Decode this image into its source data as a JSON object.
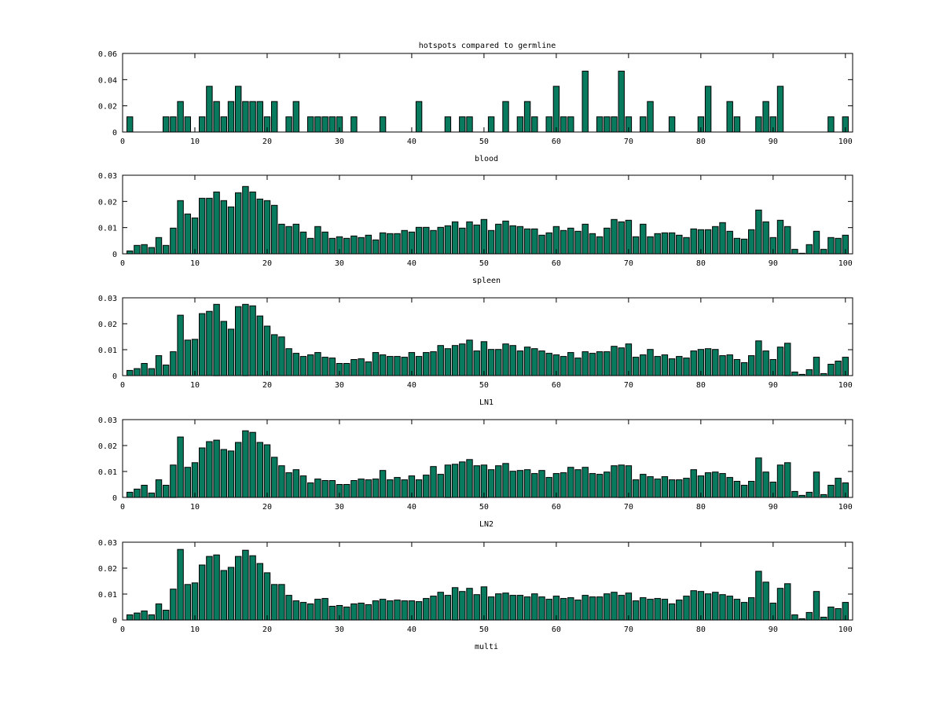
{
  "figure_title": "hotspots compared to germline",
  "colors": {
    "bar": "#087a5e",
    "bar_edge": "#000000"
  },
  "chart_data": [
    {
      "type": "bar",
      "title": "hotspots compared to germline",
      "xlabel": "blood",
      "xlim": [
        0,
        101
      ],
      "ylim": [
        0,
        0.06
      ],
      "xticks": [
        "0",
        "10",
        "20",
        "30",
        "40",
        "50",
        "60",
        "70",
        "80",
        "90",
        "100"
      ],
      "yticks": [
        "0",
        "0.02",
        "0.04",
        "0.06"
      ],
      "x_start": 1,
      "values": [
        0.0116,
        0,
        0,
        0,
        0,
        0.0116,
        0.0116,
        0.0233,
        0.0116,
        0,
        0.0116,
        0.0349,
        0.0233,
        0.0116,
        0.0233,
        0.0349,
        0.0233,
        0.0233,
        0.0233,
        0.0116,
        0.0233,
        0,
        0.0116,
        0.0233,
        0,
        0.0116,
        0.0116,
        0.0116,
        0.0116,
        0.0116,
        0,
        0.0116,
        0,
        0,
        0,
        0.0116,
        0,
        0,
        0,
        0,
        0.0233,
        0,
        0,
        0,
        0.0116,
        0,
        0.0116,
        0.0116,
        0,
        0,
        0.0116,
        0,
        0.0233,
        0,
        0.0116,
        0.0233,
        0.0116,
        0,
        0.0116,
        0.0349,
        0.0116,
        0.0116,
        0,
        0.0465,
        0,
        0.0116,
        0.0116,
        0.0116,
        0.0465,
        0.0116,
        0,
        0.0116,
        0.0233,
        0,
        0,
        0.0116,
        0,
        0,
        0,
        0.0116,
        0.0349,
        0,
        0,
        0.0233,
        0.0116,
        0,
        0,
        0.0116,
        0.0233,
        0.0116,
        0.0349,
        0,
        0,
        0,
        0,
        0,
        0,
        0.0116,
        0,
        0.0116
      ]
    },
    {
      "type": "bar",
      "xlabel": "spleen",
      "xlim": [
        0,
        101
      ],
      "ylim": [
        0,
        0.03
      ],
      "xticks": [
        "0",
        "10",
        "20",
        "30",
        "40",
        "50",
        "60",
        "70",
        "80",
        "90",
        "100"
      ],
      "yticks": [
        "0",
        "0.01",
        "0.02",
        "0.03"
      ],
      "x_start": 1,
      "values": [
        0.0011,
        0.0032,
        0.0035,
        0.0024,
        0.0062,
        0.0032,
        0.0098,
        0.0203,
        0.0152,
        0.0137,
        0.0212,
        0.0212,
        0.0236,
        0.0203,
        0.0179,
        0.0233,
        0.0257,
        0.0236,
        0.0209,
        0.0203,
        0.0185,
        0.0113,
        0.0104,
        0.0113,
        0.0083,
        0.0059,
        0.0104,
        0.0083,
        0.0059,
        0.0065,
        0.0059,
        0.0068,
        0.0062,
        0.0071,
        0.0053,
        0.008,
        0.0077,
        0.0077,
        0.0089,
        0.0083,
        0.0101,
        0.0101,
        0.0089,
        0.0101,
        0.0107,
        0.0122,
        0.0098,
        0.0122,
        0.011,
        0.0131,
        0.0089,
        0.0113,
        0.0125,
        0.0107,
        0.0104,
        0.0095,
        0.0095,
        0.0071,
        0.008,
        0.0104,
        0.0089,
        0.0098,
        0.0086,
        0.0113,
        0.0077,
        0.0065,
        0.0098,
        0.0131,
        0.0122,
        0.0128,
        0.0065,
        0.0113,
        0.0065,
        0.0077,
        0.008,
        0.008,
        0.0071,
        0.0062,
        0.0095,
        0.0092,
        0.0092,
        0.0104,
        0.0119,
        0.0086,
        0.0059,
        0.0056,
        0.0092,
        0.0167,
        0.0122,
        0.0062,
        0.0128,
        0.0104,
        0.0017,
        0.0002,
        0.0035,
        0.0086,
        0.0017,
        0.0062,
        0.0059,
        0.0071
      ]
    },
    {
      "type": "bar",
      "xlabel": "LN1",
      "xlim": [
        0,
        101
      ],
      "ylim": [
        0,
        0.03
      ],
      "xticks": [
        "0",
        "10",
        "20",
        "30",
        "40",
        "50",
        "60",
        "70",
        "80",
        "90",
        "100"
      ],
      "yticks": [
        "0",
        "0.01",
        "0.02",
        "0.03"
      ],
      "x_start": 1,
      "values": [
        0.002,
        0.0027,
        0.0047,
        0.0027,
        0.0077,
        0.0041,
        0.0092,
        0.0233,
        0.0137,
        0.014,
        0.0239,
        0.0248,
        0.0275,
        0.0209,
        0.0179,
        0.0266,
        0.0275,
        0.0269,
        0.023,
        0.0191,
        0.0158,
        0.0149,
        0.0104,
        0.0086,
        0.0074,
        0.008,
        0.0089,
        0.0071,
        0.0068,
        0.0047,
        0.0047,
        0.0062,
        0.0065,
        0.0053,
        0.0089,
        0.008,
        0.0074,
        0.0074,
        0.0071,
        0.0089,
        0.0074,
        0.0089,
        0.0092,
        0.0116,
        0.0104,
        0.0116,
        0.0122,
        0.0137,
        0.0095,
        0.0131,
        0.0101,
        0.0101,
        0.0122,
        0.0116,
        0.0095,
        0.011,
        0.0104,
        0.0095,
        0.0086,
        0.008,
        0.0074,
        0.0089,
        0.0068,
        0.0092,
        0.0086,
        0.0092,
        0.0092,
        0.0113,
        0.0107,
        0.0122,
        0.0071,
        0.008,
        0.0101,
        0.0074,
        0.008,
        0.0065,
        0.0074,
        0.0068,
        0.0095,
        0.0101,
        0.0104,
        0.0101,
        0.0077,
        0.008,
        0.0062,
        0.005,
        0.0077,
        0.0134,
        0.0095,
        0.0062,
        0.011,
        0.0125,
        0.0014,
        0.0005,
        0.0023,
        0.0071,
        0.0008,
        0.0044,
        0.0056,
        0.0071
      ]
    },
    {
      "type": "bar",
      "xlabel": "LN2",
      "xlim": [
        0,
        101
      ],
      "ylim": [
        0,
        0.03
      ],
      "xticks": [
        "0",
        "10",
        "20",
        "30",
        "40",
        "50",
        "60",
        "70",
        "80",
        "90",
        "100"
      ],
      "yticks": [
        "0",
        "0.01",
        "0.02",
        "0.03"
      ],
      "x_start": 1,
      "values": [
        0.002,
        0.0032,
        0.0047,
        0.0017,
        0.0068,
        0.0047,
        0.0125,
        0.0233,
        0.0116,
        0.0134,
        0.0191,
        0.0215,
        0.0221,
        0.0185,
        0.0179,
        0.0212,
        0.0257,
        0.0251,
        0.0212,
        0.0203,
        0.0155,
        0.0122,
        0.0095,
        0.0107,
        0.0083,
        0.0056,
        0.0071,
        0.0065,
        0.0065,
        0.005,
        0.005,
        0.0065,
        0.0071,
        0.0068,
        0.0071,
        0.0104,
        0.0068,
        0.0077,
        0.0068,
        0.0083,
        0.0068,
        0.0086,
        0.0119,
        0.0089,
        0.0125,
        0.0128,
        0.0137,
        0.0146,
        0.0122,
        0.0125,
        0.0107,
        0.0122,
        0.0131,
        0.0101,
        0.0104,
        0.0107,
        0.0092,
        0.0104,
        0.0077,
        0.0092,
        0.0095,
        0.0116,
        0.0107,
        0.0116,
        0.0092,
        0.0089,
        0.0098,
        0.0122,
        0.0125,
        0.0122,
        0.0068,
        0.0089,
        0.008,
        0.0071,
        0.008,
        0.0068,
        0.0068,
        0.0074,
        0.0107,
        0.0083,
        0.0095,
        0.0098,
        0.0092,
        0.0077,
        0.0062,
        0.0047,
        0.0062,
        0.0152,
        0.0098,
        0.0059,
        0.0125,
        0.0134,
        0.0023,
        0.0008,
        0.002,
        0.0098,
        0.0011,
        0.0047,
        0.0074,
        0.0056
      ]
    },
    {
      "type": "bar",
      "xlabel": "multi",
      "xlim": [
        0,
        101
      ],
      "ylim": [
        0,
        0.03
      ],
      "xticks": [
        "0",
        "10",
        "20",
        "30",
        "40",
        "50",
        "60",
        "70",
        "80",
        "90",
        "100"
      ],
      "yticks": [
        "0",
        "0.01",
        "0.02",
        "0.03"
      ],
      "x_start": 1,
      "values": [
        0.002,
        0.0027,
        0.0035,
        0.002,
        0.0062,
        0.0038,
        0.0119,
        0.0272,
        0.0137,
        0.0143,
        0.0212,
        0.0245,
        0.0251,
        0.0191,
        0.0203,
        0.0245,
        0.0269,
        0.0248,
        0.0218,
        0.0182,
        0.0137,
        0.0137,
        0.0095,
        0.0074,
        0.0068,
        0.0062,
        0.008,
        0.0083,
        0.0053,
        0.0056,
        0.005,
        0.0062,
        0.0065,
        0.0059,
        0.0074,
        0.008,
        0.0074,
        0.0077,
        0.0074,
        0.0074,
        0.0071,
        0.0083,
        0.0092,
        0.0107,
        0.0095,
        0.0125,
        0.011,
        0.0122,
        0.0098,
        0.0128,
        0.0089,
        0.0101,
        0.0104,
        0.0095,
        0.0095,
        0.0089,
        0.0101,
        0.0089,
        0.008,
        0.0092,
        0.0083,
        0.0086,
        0.0077,
        0.0095,
        0.0089,
        0.0089,
        0.0101,
        0.0107,
        0.0095,
        0.0104,
        0.0074,
        0.0086,
        0.008,
        0.0083,
        0.008,
        0.0062,
        0.0077,
        0.0092,
        0.0113,
        0.011,
        0.0101,
        0.0107,
        0.0098,
        0.0092,
        0.008,
        0.0068,
        0.0086,
        0.0188,
        0.0146,
        0.0065,
        0.0122,
        0.014,
        0.002,
        0.0005,
        0.0029,
        0.011,
        0.0011,
        0.005,
        0.0044,
        0.0068
      ]
    }
  ]
}
